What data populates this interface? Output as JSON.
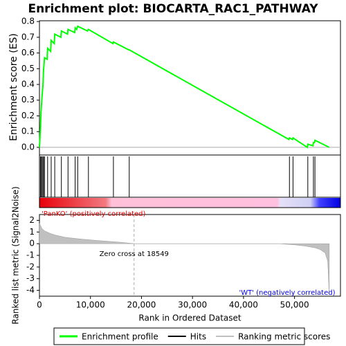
{
  "chart_data": [
    {
      "type": "line",
      "title": "Enrichment plot: BIOCARTA_RAC1_PATHWAY",
      "ylabel": "Enrichment score (ES)",
      "xlim": [
        0,
        59000
      ],
      "ylim": [
        -0.04,
        0.805
      ],
      "yticks": [
        {
          "value": 0,
          "label": "0.0"
        },
        0.1,
        0.2,
        0.3,
        0.4,
        0.5,
        0.6,
        0.7,
        0.8
      ],
      "series": [
        {
          "name": "Enrichment profile",
          "color": "#00ff00",
          "x": [
            0,
            200,
            300,
            500,
            700,
            800,
            1000,
            1500,
            1600,
            2200,
            2300,
            2900,
            3000,
            4200,
            4300,
            5500,
            5600,
            6900,
            7000,
            7300,
            7500,
            9400,
            9600,
            14400,
            14500,
            17500,
            17600,
            48900,
            49000,
            49600,
            49700,
            52500,
            52600,
            53600,
            53700,
            53900,
            54000,
            56800
          ],
          "values": [
            0,
            0.12,
            0.22,
            0.32,
            0.4,
            0.49,
            0.57,
            0.56,
            0.63,
            0.61,
            0.68,
            0.66,
            0.72,
            0.7,
            0.74,
            0.72,
            0.75,
            0.73,
            0.76,
            0.75,
            0.77,
            0.74,
            0.75,
            0.66,
            0.67,
            0.62,
            0.62,
            0.05,
            0.06,
            0.05,
            0.06,
            0.0,
            0.02,
            0.01,
            0.03,
            0.03,
            0.045,
            0.0
          ]
        }
      ]
    },
    {
      "type": "rug",
      "xlim": [
        0,
        59000
      ],
      "series": [
        {
          "name": "Hits",
          "color": "#000000",
          "x": [
            200,
            300,
            500,
            700,
            800,
            1000,
            1600,
            2300,
            3000,
            4300,
            5600,
            7000,
            7500,
            9600,
            14500,
            17600,
            49000,
            49700,
            52600,
            53700,
            54000
          ]
        }
      ]
    },
    {
      "type": "area",
      "ylabel": "Ranked list metric (Signal2Noise)",
      "xlabel": "Rank in Ordered Dataset",
      "xlim": [
        0,
        59000
      ],
      "ylim": [
        -4.5,
        2.5
      ],
      "xticks": [
        0,
        {
          "value": 10000,
          "label": "10,000"
        },
        {
          "value": 20000,
          "label": "20,000"
        },
        {
          "value": 30000,
          "label": "30,000"
        },
        {
          "value": 40000,
          "label": "40,000"
        },
        {
          "value": 50000,
          "label": "50,000"
        }
      ],
      "yticks": [
        2,
        1,
        0,
        -1,
        -2,
        -3,
        -4
      ],
      "zero_cross": 18549,
      "zero_cross_label": "Zero cross at 18549",
      "pos_label": "'PanKO' (positively correlated)",
      "neg_label": "'WT' (negatively correlated)",
      "series": [
        {
          "name": "Ranking metric scores",
          "color": "#c0c0c0",
          "x": [
            0,
            500,
            1000,
            2000,
            3000,
            5000,
            8000,
            12000,
            16000,
            18549,
            47000,
            50000,
            52000,
            54000,
            55000,
            56000,
            56500,
            56800
          ],
          "values": [
            1.75,
            1.3,
            1.1,
            0.9,
            0.75,
            0.55,
            0.4,
            0.25,
            0.12,
            0,
            0,
            -0.1,
            -0.2,
            -0.35,
            -0.5,
            -0.8,
            -1.5,
            -4.3
          ]
        }
      ]
    }
  ]
}
